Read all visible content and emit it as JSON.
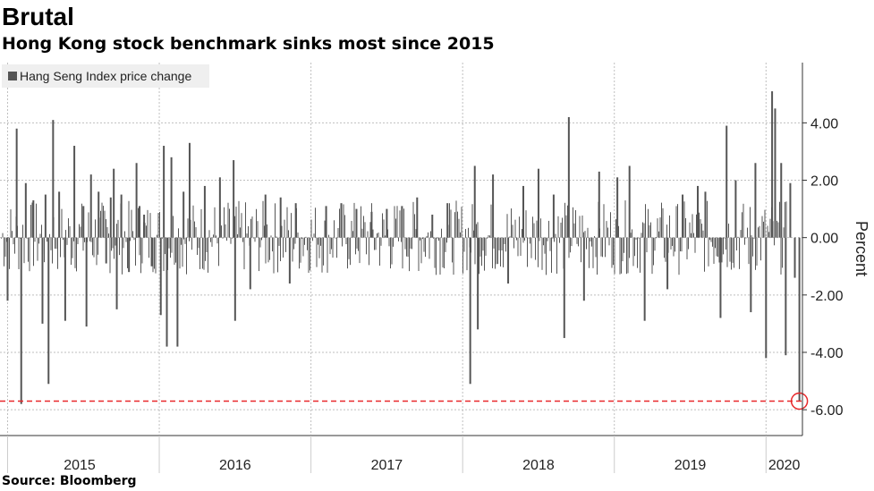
{
  "header": {
    "title": "Brutal",
    "subtitle": "Hong Kong stock benchmark sinks most since 2015"
  },
  "footer": {
    "source": "Source: Bloomberg"
  },
  "colors": {
    "bars": "#555555",
    "reference_line": "#e8282b",
    "grid": "#bfbfbf"
  },
  "chart_data": {
    "type": "bar",
    "title": "Brutal",
    "subtitle": "Hong Kong stock benchmark sinks most since 2015",
    "ylabel": "Percent",
    "xlabel": "",
    "ylim": [
      -6.9,
      6.1
    ],
    "yticks": [
      4,
      2,
      0,
      -2,
      -4,
      -6
    ],
    "ytick_labels": [
      "4.00",
      "2.00",
      "0.00",
      "-2.00",
      "-4.00",
      "-6.00"
    ],
    "x_range": [
      2014.95,
      2020.24
    ],
    "year_boundaries": [
      2015,
      2016,
      2017,
      2018,
      2019,
      2020
    ],
    "year_labels": [
      "2015",
      "2016",
      "2017",
      "2018",
      "2019",
      "2020"
    ],
    "legend": [
      "Hang Seng Index price change"
    ],
    "reference_line": {
      "y": -5.7,
      "style": "dashed"
    },
    "highlight_point": {
      "x": 2020.22,
      "y": -5.7
    },
    "series": [
      {
        "name": "Hang Seng Index price change",
        "x": [
          2015.0,
          2015.06,
          2015.09,
          2015.12,
          2015.17,
          2015.23,
          2015.25,
          2015.27,
          2015.3,
          2015.34,
          2015.38,
          2015.44,
          2015.5,
          2015.52,
          2015.55,
          2015.6,
          2015.65,
          2015.68,
          2015.7,
          2015.72,
          2015.75,
          2015.8,
          2015.85,
          2015.87,
          2015.9,
          2015.95,
          2016.01,
          2016.03,
          2016.05,
          2016.08,
          2016.12,
          2016.16,
          2016.2,
          2016.3,
          2016.4,
          2016.49,
          2016.5,
          2016.6,
          2016.7,
          2016.8,
          2016.86,
          2016.9,
          2017.1,
          2017.2,
          2017.3,
          2017.4,
          2017.5,
          2017.6,
          2017.7,
          2017.8,
          2017.9,
          2018.05,
          2018.08,
          2018.1,
          2018.2,
          2018.3,
          2018.4,
          2018.5,
          2018.6,
          2018.67,
          2018.7,
          2018.8,
          2018.9,
          2019.02,
          2019.1,
          2019.2,
          2019.35,
          2019.45,
          2019.55,
          2019.6,
          2019.7,
          2019.74,
          2019.8,
          2019.9,
          2019.93,
          2020.0,
          2020.04,
          2020.06,
          2020.1,
          2020.13,
          2020.16,
          2020.19,
          2020.22
        ],
        "values": [
          -2.2,
          3.8,
          -5.8,
          1.9,
          1.3,
          -3.0,
          1.5,
          -5.1,
          4.1,
          1.6,
          -2.9,
          3.2,
          1.1,
          -3.1,
          2.2,
          1.6,
          -0.9,
          1.4,
          2.4,
          -2.5,
          1.5,
          -1.2,
          2.6,
          1.1,
          0.8,
          -1.0,
          -2.7,
          3.2,
          -3.8,
          2.8,
          -3.8,
          1.6,
          3.3,
          1.8,
          2.1,
          2.7,
          -2.9,
          -1.8,
          1.5,
          1.4,
          -1.6,
          1.2,
          1.1,
          1.2,
          1.0,
          0.9,
          1.0,
          1.1,
          1.4,
          0.8,
          1.2,
          -5.1,
          2.5,
          -3.2,
          2.2,
          -1.6,
          1.8,
          2.4,
          1.5,
          -3.5,
          4.2,
          -2.2,
          2.3,
          2.1,
          2.5,
          -2.9,
          -1.8,
          1.5,
          1.8,
          1.6,
          -2.8,
          3.9,
          2.0,
          -2.6,
          2.6,
          -4.2,
          5.1,
          4.5,
          2.6,
          -4.1,
          1.9,
          -1.4,
          -5.7
        ]
      }
    ]
  }
}
